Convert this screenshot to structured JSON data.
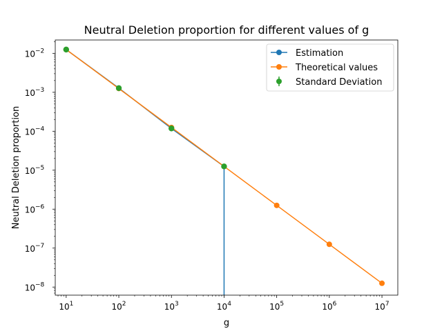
{
  "chart_data": {
    "type": "line",
    "title": "Neutral Deletion proportion for different values of g",
    "xlabel": "g",
    "ylabel": "Neutral Deletion proportion",
    "xscale": "log",
    "yscale": "log",
    "xlim": [
      6.2,
      20000000
    ],
    "ylim": [
      6.2e-09,
      0.022
    ],
    "grid": false,
    "legend_position": "top-right",
    "x_ticks": [
      {
        "base": "10",
        "exp": "1",
        "value": 10
      },
      {
        "base": "10",
        "exp": "2",
        "value": 100
      },
      {
        "base": "10",
        "exp": "3",
        "value": 1000
      },
      {
        "base": "10",
        "exp": "4",
        "value": 10000
      },
      {
        "base": "10",
        "exp": "5",
        "value": 100000
      },
      {
        "base": "10",
        "exp": "6",
        "value": 1000000
      },
      {
        "base": "10",
        "exp": "7",
        "value": 10000000
      }
    ],
    "y_ticks": [
      {
        "base": "10",
        "exp": "−2",
        "value": 0.01
      },
      {
        "base": "10",
        "exp": "−3",
        "value": 0.001
      },
      {
        "base": "10",
        "exp": "−4",
        "value": 0.0001
      },
      {
        "base": "10",
        "exp": "−5",
        "value": 1e-05
      },
      {
        "base": "10",
        "exp": "−6",
        "value": 1e-06
      },
      {
        "base": "10",
        "exp": "−7",
        "value": 1e-07
      },
      {
        "base": "10",
        "exp": "−8",
        "value": 1e-08
      }
    ],
    "series": [
      {
        "name": "Estimation",
        "color": "#1f77b4",
        "marker": "circle",
        "x": [
          10,
          100,
          1000,
          10000,
          100000
        ],
        "y": [
          0.0125,
          0.00128,
          0.000118,
          1.25e-05,
          0
        ],
        "note_last_point_zero": true
      },
      {
        "name": "Theoretical values",
        "color": "#ff7f0e",
        "marker": "circle",
        "x": [
          10,
          100,
          1000,
          10000,
          100000,
          1000000,
          10000000
        ],
        "y": [
          0.0125,
          0.00125,
          0.000125,
          1.25e-05,
          1.25e-06,
          1.25e-07,
          1.25e-08
        ]
      },
      {
        "name": "Standard Deviation",
        "color": "#2ca02c",
        "marker": "errorbar",
        "x": [
          10,
          100,
          1000,
          10000
        ],
        "y": [
          0.0125,
          0.00128,
          0.000118,
          1.25e-05
        ]
      }
    ]
  }
}
